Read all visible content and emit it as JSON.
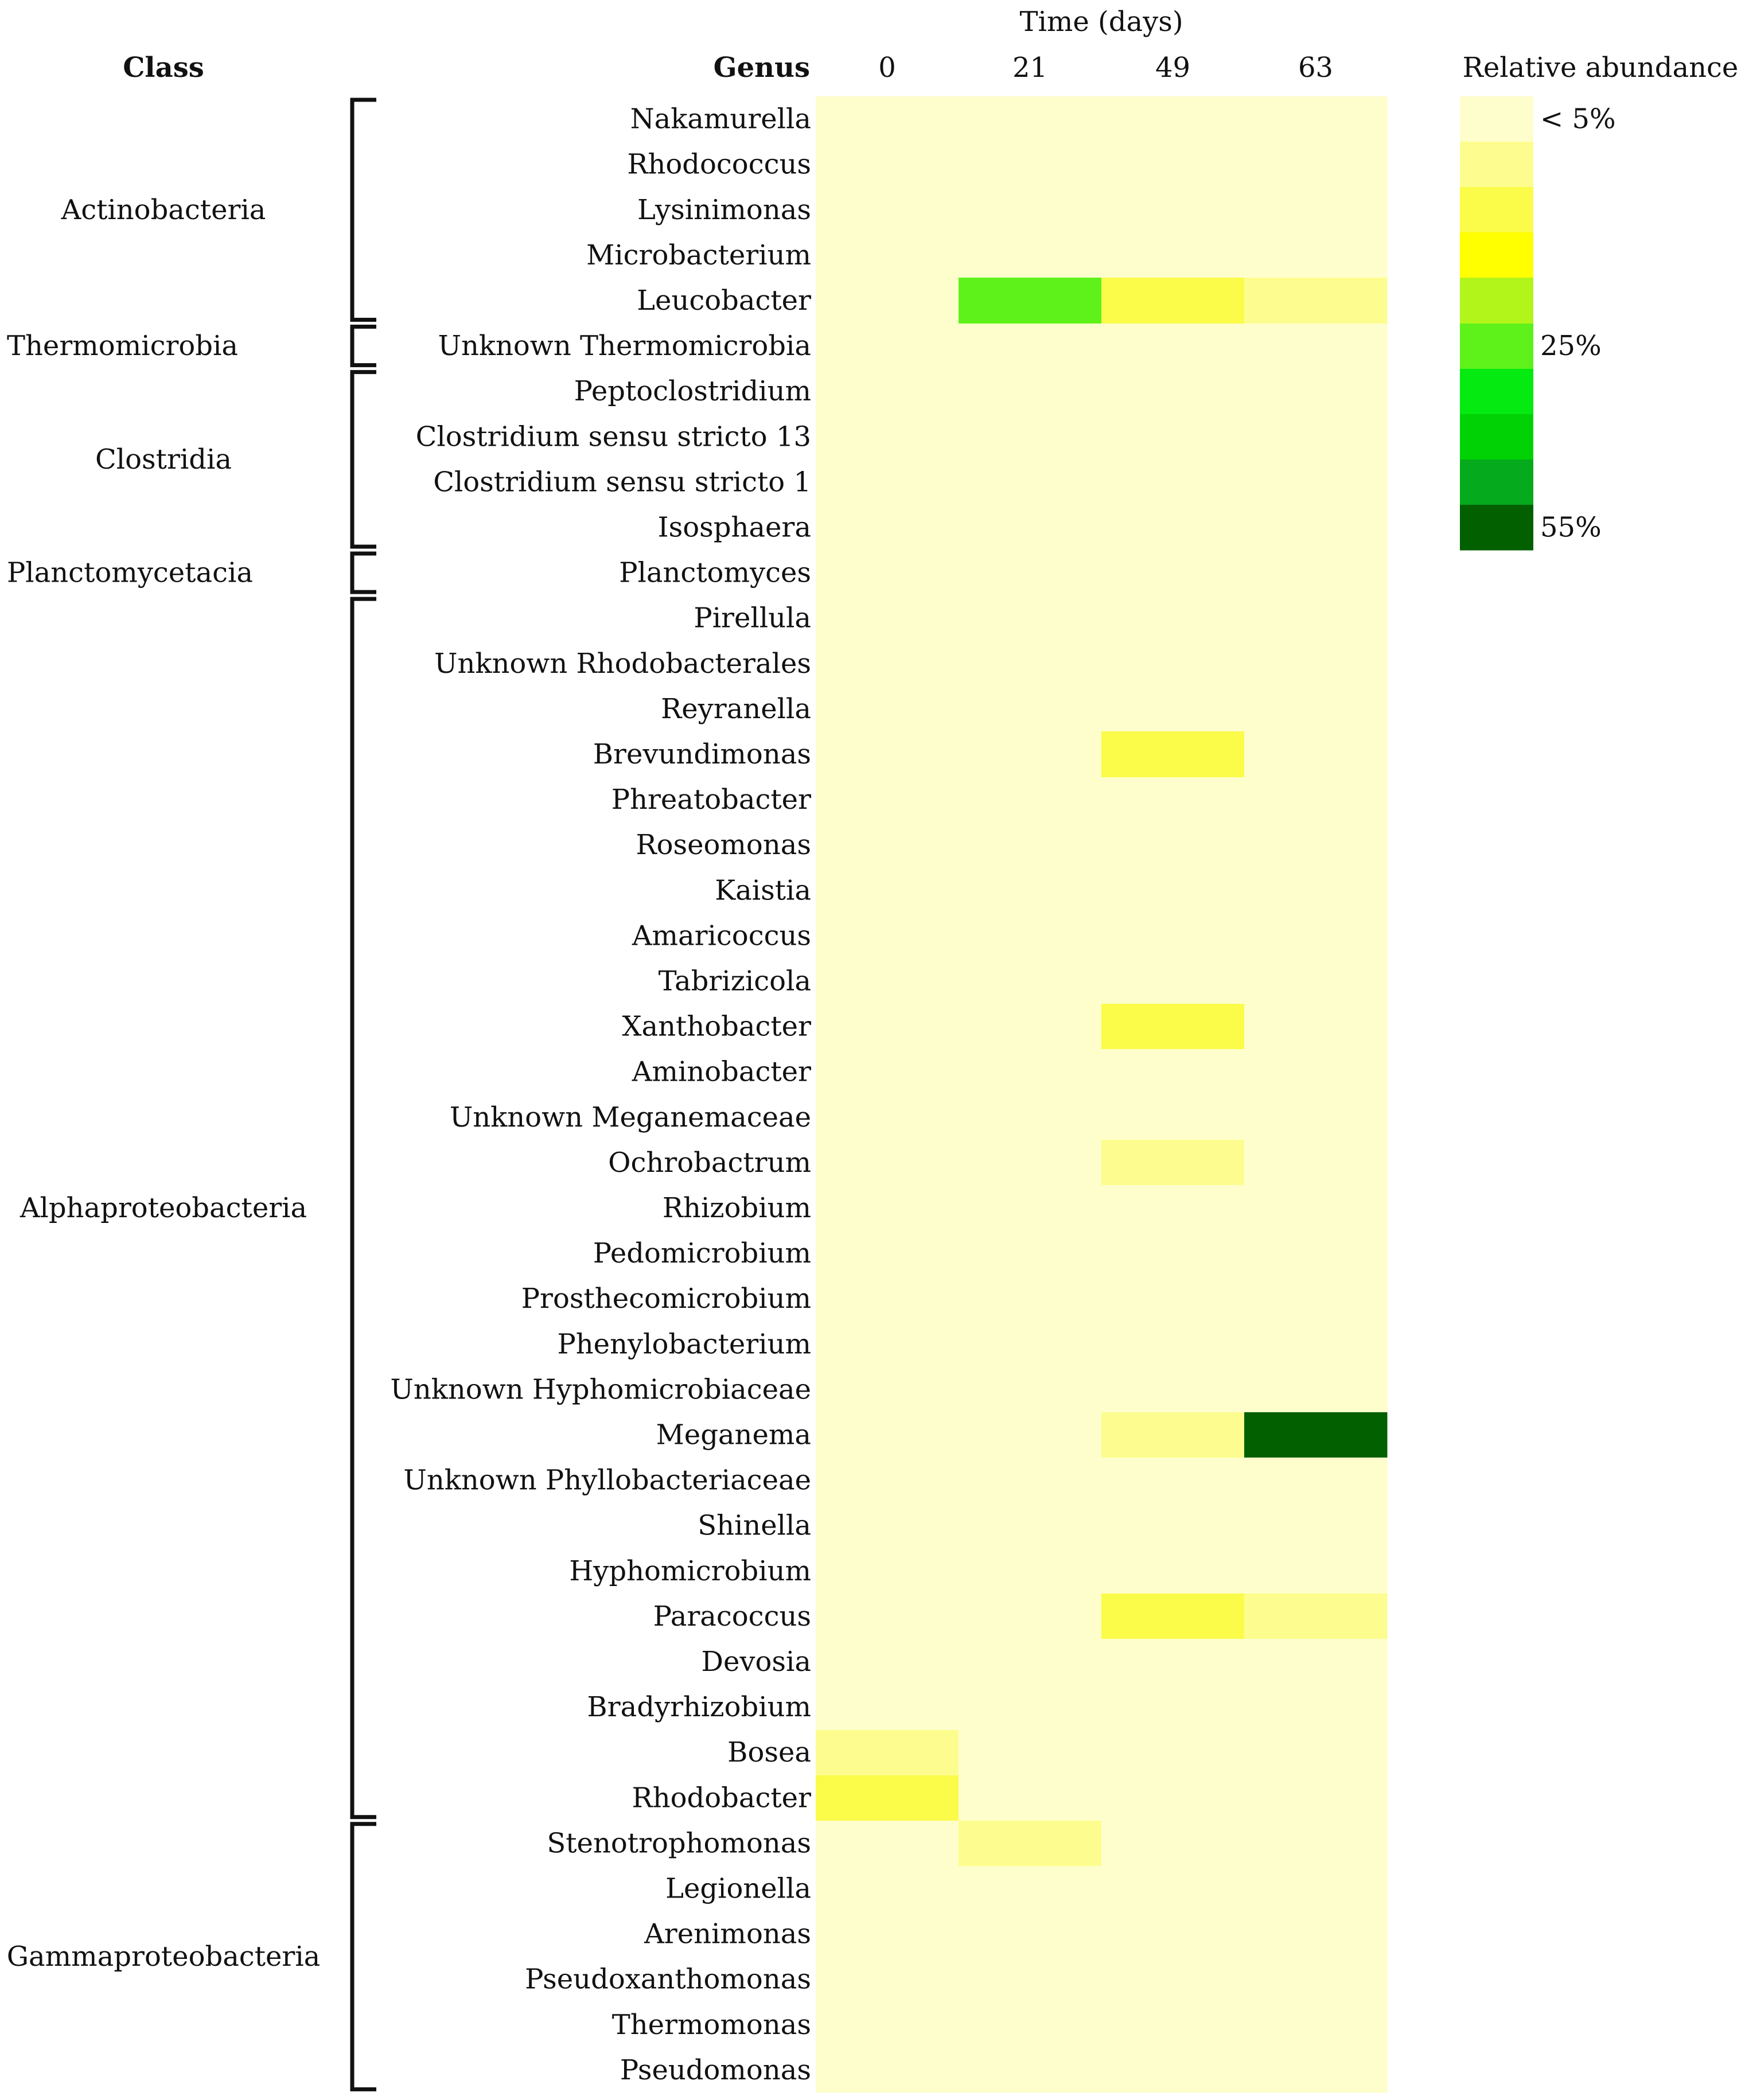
{
  "chart_data": {
    "type": "heatmap",
    "title": "Time (days)",
    "class_header": "Class",
    "genus_header": "Genus",
    "x": [
      "0",
      "21",
      "49",
      "63"
    ],
    "genera": [
      "Nakamurella",
      "Rhodococcus",
      "Lysinimonas",
      "Microbacterium",
      "Leucobacter",
      "Unknown Thermomicrobia",
      "Peptoclostridium",
      "Clostridium sensu stricto 13",
      "Clostridium sensu stricto 1",
      "Isosphaera",
      "Planctomyces",
      "Pirellula",
      "Unknown Rhodobacterales",
      "Reyranella",
      "Brevundimonas",
      "Phreatobacter",
      "Roseomonas",
      "Kaistia",
      "Amaricoccus",
      "Tabrizicola",
      "Xanthobacter",
      "Aminobacter",
      "Unknown Meganemaceae",
      "Ochrobactrum",
      "Rhizobium",
      "Pedomicrobium",
      "Prosthecomicrobium",
      "Phenylobacterium",
      "Unknown Hyphomicrobiaceae",
      "Meganema",
      "Unknown Phyllobacteriaceae",
      "Shinella",
      "Hyphomicrobium",
      "Paracoccus",
      "Devosia",
      "Bradyrhizobium",
      "Bosea",
      "Rhodobacter",
      "Stenotrophomonas",
      "Legionella",
      "Arenimonas",
      "Pseudoxanthomonas",
      "Thermomonas",
      "Pseudomonas"
    ],
    "classes": [
      {
        "name": "Actinobacteria",
        "start": 0,
        "end": 4
      },
      {
        "name": "Thermomicrobia",
        "start": 5,
        "end": 5
      },
      {
        "name": "Clostridia",
        "start": 6,
        "end": 9
      },
      {
        "name": "Planctomycetacia",
        "start": 10,
        "end": 10
      },
      {
        "name": "Alphaproteobacteria",
        "start": 11,
        "end": 37
      },
      {
        "name": "Gammaproteobacteria",
        "start": 38,
        "end": 43
      }
    ],
    "value_unit": "relative abundance (color bin index 0-9)",
    "levels": [
      [
        0,
        0,
        0,
        0
      ],
      [
        0,
        0,
        0,
        0
      ],
      [
        0,
        0,
        0,
        0
      ],
      [
        0,
        0,
        0,
        0
      ],
      [
        0,
        5,
        2,
        1
      ],
      [
        0,
        0,
        0,
        0
      ],
      [
        0,
        0,
        0,
        0
      ],
      [
        0,
        0,
        0,
        0
      ],
      [
        0,
        0,
        0,
        0
      ],
      [
        0,
        0,
        0,
        0
      ],
      [
        0,
        0,
        0,
        0
      ],
      [
        0,
        0,
        0,
        0
      ],
      [
        0,
        0,
        0,
        0
      ],
      [
        0,
        0,
        0,
        0
      ],
      [
        0,
        0,
        2,
        0
      ],
      [
        0,
        0,
        0,
        0
      ],
      [
        0,
        0,
        0,
        0
      ],
      [
        0,
        0,
        0,
        0
      ],
      [
        0,
        0,
        0,
        0
      ],
      [
        0,
        0,
        0,
        0
      ],
      [
        0,
        0,
        2,
        0
      ],
      [
        0,
        0,
        0,
        0
      ],
      [
        0,
        0,
        0,
        0
      ],
      [
        0,
        0,
        1,
        0
      ],
      [
        0,
        0,
        0,
        0
      ],
      [
        0,
        0,
        0,
        0
      ],
      [
        0,
        0,
        0,
        0
      ],
      [
        0,
        0,
        0,
        0
      ],
      [
        0,
        0,
        0,
        0
      ],
      [
        0,
        0,
        1,
        9
      ],
      [
        0,
        0,
        0,
        0
      ],
      [
        0,
        0,
        0,
        0
      ],
      [
        0,
        0,
        0,
        0
      ],
      [
        0,
        0,
        2,
        1
      ],
      [
        0,
        0,
        0,
        0
      ],
      [
        0,
        0,
        0,
        0
      ],
      [
        1,
        0,
        0,
        0
      ],
      [
        2,
        0,
        0,
        0
      ],
      [
        0,
        1,
        0,
        0
      ],
      [
        0,
        0,
        0,
        0
      ],
      [
        0,
        0,
        0,
        0
      ],
      [
        0,
        0,
        0,
        0
      ],
      [
        0,
        0,
        0,
        0
      ],
      [
        0,
        0,
        0,
        0
      ]
    ],
    "legend": {
      "title": "Relative abundance",
      "colors": [
        "#fefecc",
        "#fdfd8f",
        "#fbfb4a",
        "#ffff00",
        "#b2f51b",
        "#5ef21a",
        "#05ea10",
        "#01d205",
        "#05ab1c",
        "#026001"
      ],
      "labels": [
        {
          "bin": 0,
          "text": "< 5%"
        },
        {
          "bin": 5,
          "text": "25%"
        },
        {
          "bin": 9,
          "text": "55%"
        }
      ]
    }
  }
}
